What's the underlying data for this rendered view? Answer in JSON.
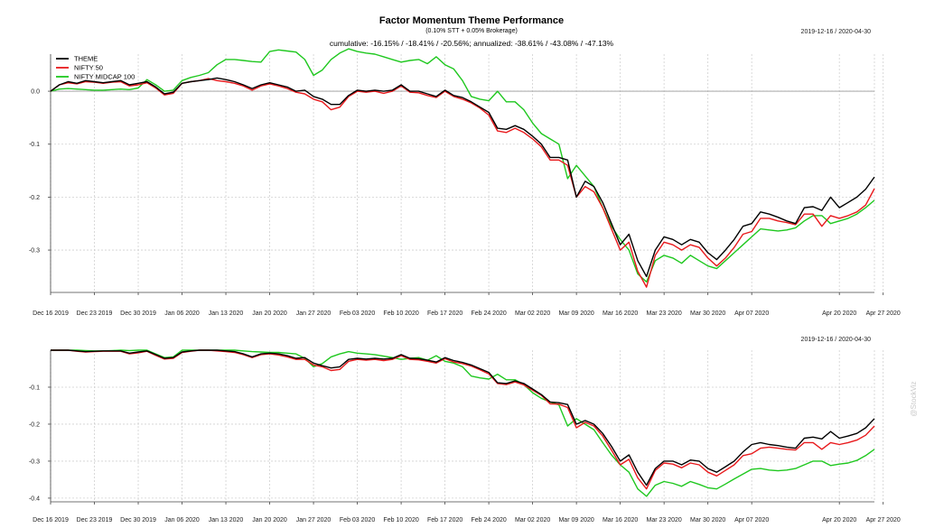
{
  "page": {
    "title": "Factor Momentum Theme Performance",
    "subtitle": "(0.10% STT + 0.05% Brokerage)",
    "stats": "cumulative: -16.15% / -18.41% / -20.56%; annualized: -38.61% / -43.08% / -47.13%",
    "watermark": "@StockViz"
  },
  "chart_data": [
    {
      "type": "line",
      "title": "Factor Momentum Theme Performance",
      "date_range": "2019-12-16 / 2020-04-30",
      "legend_position": "top-left",
      "grid": true,
      "ylim": [
        -0.38,
        0.07
      ],
      "y_ticks": [
        0.0,
        -0.1,
        -0.2,
        -0.3
      ],
      "y_tick_labels": [
        "0.0",
        "-0.1",
        "-0.2",
        "-0.3"
      ],
      "x_tick_labels": [
        "Dec 16 2019",
        "Dec 23 2019",
        "Dec 30 2019",
        "Jan 06 2020",
        "Jan 13 2020",
        "Jan 20 2020",
        "Jan 27 2020",
        "Feb 03 2020",
        "Feb 10 2020",
        "Feb 17 2020",
        "Feb 24 2020",
        "Mar 02 2020",
        "Mar 09 2020",
        "Mar 16 2020",
        "Mar 23 2020",
        "Mar 30 2020",
        "Apr 07 2020",
        "Apr 20 2020",
        "Apr 27 2020"
      ],
      "x_tick_index": [
        0,
        5,
        10,
        15,
        20,
        25,
        30,
        35,
        40,
        45,
        50,
        55,
        60,
        65,
        70,
        75,
        80,
        90,
        95
      ],
      "series": [
        {
          "name": "THEME",
          "color": "#000000",
          "values": [
            0.0,
            0.012,
            0.018,
            0.015,
            0.02,
            0.018,
            0.016,
            0.018,
            0.02,
            0.012,
            0.015,
            0.018,
            0.008,
            -0.005,
            -0.002,
            0.015,
            0.018,
            0.02,
            0.022,
            0.025,
            0.022,
            0.018,
            0.012,
            0.005,
            0.012,
            0.016,
            0.012,
            0.008,
            0.0,
            0.002,
            -0.01,
            -0.015,
            -0.025,
            -0.025,
            -0.008,
            0.002,
            0.0,
            0.002,
            0.0,
            0.002,
            0.012,
            0.0,
            0.0,
            -0.005,
            -0.01,
            0.002,
            -0.008,
            -0.012,
            -0.02,
            -0.03,
            -0.04,
            -0.07,
            -0.072,
            -0.065,
            -0.072,
            -0.085,
            -0.1,
            -0.125,
            -0.125,
            -0.13,
            -0.2,
            -0.17,
            -0.18,
            -0.21,
            -0.25,
            -0.29,
            -0.27,
            -0.32,
            -0.35,
            -0.3,
            -0.275,
            -0.28,
            -0.29,
            -0.28,
            -0.285,
            -0.305,
            -0.318,
            -0.3,
            -0.28,
            -0.255,
            -0.25,
            -0.228,
            -0.232,
            -0.238,
            -0.245,
            -0.25,
            -0.22,
            -0.218,
            -0.225,
            -0.2,
            -0.22,
            -0.21,
            -0.2,
            -0.185,
            -0.162
          ]
        },
        {
          "name": "NIFTY 50",
          "color": "#e8191c",
          "values": [
            0.0,
            0.012,
            0.016,
            0.014,
            0.018,
            0.017,
            0.015,
            0.017,
            0.018,
            0.01,
            0.012,
            0.016,
            0.006,
            -0.007,
            -0.004,
            0.015,
            0.018,
            0.02,
            0.024,
            0.02,
            0.018,
            0.015,
            0.01,
            0.002,
            0.01,
            0.014,
            0.01,
            0.005,
            -0.002,
            -0.005,
            -0.015,
            -0.02,
            -0.035,
            -0.03,
            -0.01,
            0.0,
            -0.002,
            0.0,
            -0.004,
            0.0,
            0.01,
            -0.002,
            -0.003,
            -0.008,
            -0.012,
            0.0,
            -0.01,
            -0.015,
            -0.022,
            -0.032,
            -0.045,
            -0.075,
            -0.078,
            -0.07,
            -0.078,
            -0.09,
            -0.105,
            -0.13,
            -0.13,
            -0.14,
            -0.2,
            -0.18,
            -0.19,
            -0.22,
            -0.26,
            -0.3,
            -0.285,
            -0.34,
            -0.37,
            -0.31,
            -0.285,
            -0.29,
            -0.3,
            -0.29,
            -0.295,
            -0.315,
            -0.33,
            -0.315,
            -0.295,
            -0.27,
            -0.265,
            -0.24,
            -0.24,
            -0.245,
            -0.248,
            -0.252,
            -0.232,
            -0.232,
            -0.255,
            -0.235,
            -0.24,
            -0.235,
            -0.228,
            -0.215,
            -0.184
          ]
        },
        {
          "name": "NIFTY MIDCAP 100",
          "color": "#1fc81f",
          "values": [
            0.0,
            0.004,
            0.005,
            0.004,
            0.003,
            0.002,
            0.002,
            0.003,
            0.004,
            0.003,
            0.006,
            0.022,
            0.012,
            0.0,
            0.002,
            0.02,
            0.026,
            0.03,
            0.035,
            0.05,
            0.06,
            0.06,
            0.058,
            0.056,
            0.055,
            0.075,
            0.078,
            0.076,
            0.074,
            0.06,
            0.03,
            0.04,
            0.06,
            0.072,
            0.08,
            0.075,
            0.072,
            0.07,
            0.065,
            0.06,
            0.055,
            0.058,
            0.06,
            0.052,
            0.065,
            0.05,
            0.042,
            0.02,
            -0.01,
            -0.015,
            -0.018,
            0.0,
            -0.02,
            -0.02,
            -0.035,
            -0.06,
            -0.08,
            -0.09,
            -0.1,
            -0.165,
            -0.14,
            -0.16,
            -0.18,
            -0.22,
            -0.255,
            -0.28,
            -0.3,
            -0.345,
            -0.36,
            -0.32,
            -0.31,
            -0.315,
            -0.325,
            -0.31,
            -0.32,
            -0.33,
            -0.335,
            -0.32,
            -0.305,
            -0.29,
            -0.275,
            -0.26,
            -0.262,
            -0.264,
            -0.262,
            -0.258,
            -0.245,
            -0.235,
            -0.235,
            -0.25,
            -0.245,
            -0.24,
            -0.232,
            -0.22,
            -0.206
          ]
        }
      ]
    },
    {
      "type": "line",
      "date_range": "2019-12-16 / 2020-04-30",
      "grid": true,
      "ylim": [
        -0.41,
        0.0
      ],
      "y_ticks": [
        -0.1,
        -0.2,
        -0.3,
        -0.4
      ],
      "y_tick_labels": [
        "-0.1",
        "-0.2",
        "-0.3",
        "-0.4"
      ],
      "x_tick_labels": [
        "Dec 16 2019",
        "Dec 23 2019",
        "Dec 30 2019",
        "Jan 06 2020",
        "Jan 13 2020",
        "Jan 20 2020",
        "Jan 27 2020",
        "Feb 03 2020",
        "Feb 10 2020",
        "Feb 17 2020",
        "Feb 24 2020",
        "Mar 02 2020",
        "Mar 09 2020",
        "Mar 16 2020",
        "Mar 23 2020",
        "Mar 30 2020",
        "Apr 07 2020",
        "Apr 20 2020",
        "Apr 27 2020"
      ],
      "x_tick_index": [
        0,
        5,
        10,
        15,
        20,
        25,
        30,
        35,
        40,
        45,
        50,
        55,
        60,
        65,
        70,
        75,
        80,
        90,
        95
      ],
      "series": [
        {
          "name": "THEME",
          "color": "#000000",
          "values": [
            0.0,
            0.0,
            0.0,
            -0.002,
            -0.004,
            -0.003,
            -0.002,
            -0.002,
            -0.002,
            -0.008,
            -0.005,
            -0.002,
            -0.012,
            -0.022,
            -0.02,
            -0.005,
            -0.002,
            0.0,
            0.0,
            0.0,
            -0.002,
            -0.004,
            -0.01,
            -0.018,
            -0.01,
            -0.008,
            -0.01,
            -0.015,
            -0.022,
            -0.02,
            -0.035,
            -0.042,
            -0.048,
            -0.045,
            -0.025,
            -0.022,
            -0.024,
            -0.022,
            -0.024,
            -0.022,
            -0.012,
            -0.022,
            -0.023,
            -0.027,
            -0.032,
            -0.02,
            -0.028,
            -0.033,
            -0.04,
            -0.05,
            -0.06,
            -0.088,
            -0.09,
            -0.083,
            -0.09,
            -0.105,
            -0.12,
            -0.14,
            -0.142,
            -0.147,
            -0.2,
            -0.19,
            -0.2,
            -0.225,
            -0.26,
            -0.3,
            -0.283,
            -0.33,
            -0.365,
            -0.32,
            -0.3,
            -0.3,
            -0.31,
            -0.297,
            -0.3,
            -0.32,
            -0.33,
            -0.315,
            -0.3,
            -0.275,
            -0.255,
            -0.25,
            -0.255,
            -0.258,
            -0.262,
            -0.265,
            -0.238,
            -0.235,
            -0.24,
            -0.22,
            -0.238,
            -0.232,
            -0.225,
            -0.21,
            -0.185
          ]
        },
        {
          "name": "NIFTY 50",
          "color": "#e8191c",
          "values": [
            0.0,
            0.0,
            0.0,
            -0.003,
            -0.005,
            -0.004,
            -0.003,
            -0.003,
            -0.003,
            -0.01,
            -0.007,
            -0.003,
            -0.014,
            -0.024,
            -0.022,
            -0.006,
            -0.003,
            0.0,
            0.0,
            -0.002,
            -0.004,
            -0.006,
            -0.012,
            -0.02,
            -0.012,
            -0.01,
            -0.013,
            -0.018,
            -0.025,
            -0.025,
            -0.04,
            -0.045,
            -0.055,
            -0.052,
            -0.03,
            -0.025,
            -0.027,
            -0.025,
            -0.028,
            -0.025,
            -0.015,
            -0.025,
            -0.026,
            -0.03,
            -0.035,
            -0.023,
            -0.032,
            -0.036,
            -0.043,
            -0.053,
            -0.064,
            -0.09,
            -0.093,
            -0.086,
            -0.094,
            -0.108,
            -0.122,
            -0.145,
            -0.146,
            -0.155,
            -0.21,
            -0.195,
            -0.205,
            -0.232,
            -0.27,
            -0.31,
            -0.295,
            -0.345,
            -0.375,
            -0.325,
            -0.305,
            -0.308,
            -0.318,
            -0.305,
            -0.31,
            -0.33,
            -0.34,
            -0.325,
            -0.31,
            -0.285,
            -0.28,
            -0.265,
            -0.262,
            -0.265,
            -0.268,
            -0.27,
            -0.25,
            -0.25,
            -0.268,
            -0.25,
            -0.255,
            -0.25,
            -0.243,
            -0.23,
            -0.205
          ]
        },
        {
          "name": "NIFTY MIDCAP 100",
          "color": "#1fc81f",
          "values": [
            0.0,
            0.0,
            0.0,
            0.0,
            -0.001,
            -0.002,
            -0.002,
            -0.001,
            0.0,
            -0.001,
            0.0,
            0.0,
            -0.01,
            -0.02,
            -0.018,
            0.0,
            0.0,
            0.0,
            0.0,
            0.0,
            0.0,
            0.0,
            -0.002,
            -0.004,
            -0.005,
            -0.006,
            -0.006,
            -0.008,
            -0.01,
            -0.022,
            -0.045,
            -0.036,
            -0.018,
            -0.01,
            -0.004,
            -0.008,
            -0.01,
            -0.012,
            -0.016,
            -0.02,
            -0.025,
            -0.022,
            -0.02,
            -0.027,
            -0.015,
            -0.03,
            -0.035,
            -0.045,
            -0.07,
            -0.075,
            -0.078,
            -0.065,
            -0.08,
            -0.08,
            -0.093,
            -0.115,
            -0.13,
            -0.14,
            -0.148,
            -0.205,
            -0.185,
            -0.2,
            -0.215,
            -0.25,
            -0.283,
            -0.31,
            -0.33,
            -0.375,
            -0.395,
            -0.365,
            -0.355,
            -0.36,
            -0.368,
            -0.355,
            -0.363,
            -0.372,
            -0.375,
            -0.362,
            -0.348,
            -0.335,
            -0.322,
            -0.32,
            -0.324,
            -0.326,
            -0.324,
            -0.32,
            -0.31,
            -0.3,
            -0.3,
            -0.312,
            -0.308,
            -0.305,
            -0.298,
            -0.285,
            -0.268
          ]
        }
      ]
    }
  ]
}
